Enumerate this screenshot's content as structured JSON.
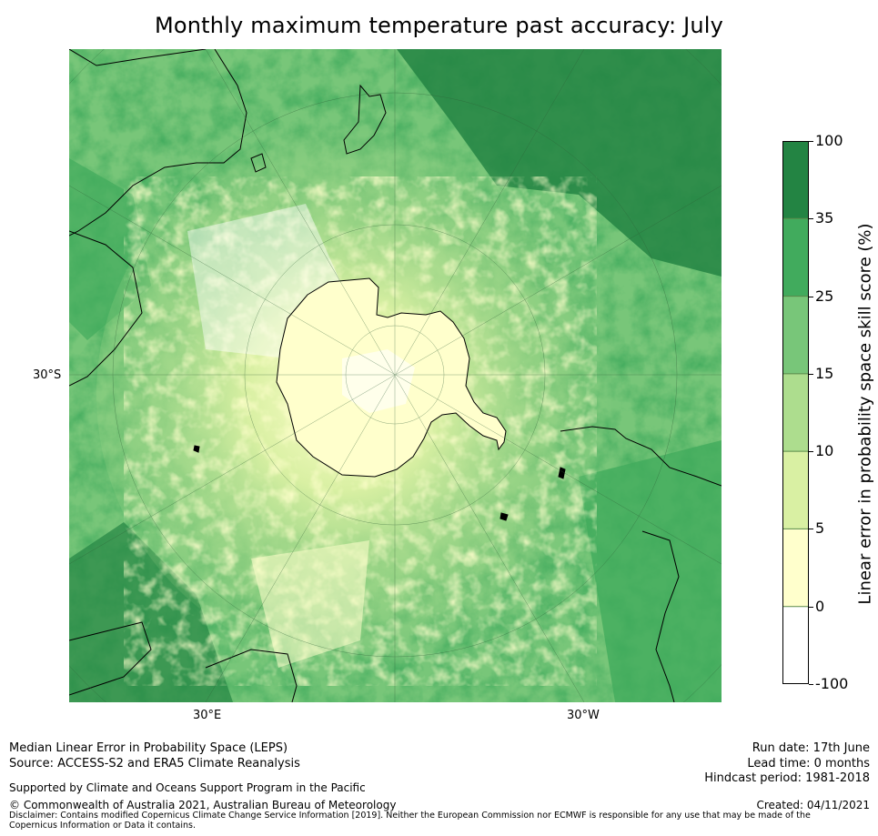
{
  "title": "Monthly maximum temperature past accuracy: July",
  "map": {
    "projection": "south-polar-stereographic",
    "lat_label": "30°S",
    "lon_labels": [
      "30°E",
      "30°W"
    ]
  },
  "colorbar": {
    "label": "Linear error in probability space skill score (%)",
    "ticks": [
      "100",
      "35",
      "25",
      "15",
      "10",
      "5",
      "0",
      "-100"
    ],
    "bins": [
      {
        "from": -100,
        "to": 0,
        "color": "#ffffff"
      },
      {
        "from": 0,
        "to": 5,
        "color": "#ffffcc"
      },
      {
        "from": 5,
        "to": 10,
        "color": "#d9f0a3"
      },
      {
        "from": 10,
        "to": 15,
        "color": "#addd8e"
      },
      {
        "from": 15,
        "to": 25,
        "color": "#78c679"
      },
      {
        "from": 25,
        "to": 35,
        "color": "#41ab5d"
      },
      {
        "from": 35,
        "to": 100,
        "color": "#238443"
      }
    ]
  },
  "footer": {
    "line1": "Median Linear Error in Probability Space (LEPS)",
    "line2": "Source: ACCESS-S2 and ERA5 Climate Reanalysis",
    "support": "Supported by Climate and Oceans Support Program in the Pacific",
    "copyright": "© Commonwealth of Australia 2021, Australian Bureau of Meteorology",
    "disclaimer": "Disclaimer: Contains modified Copernicus Climate Change Service Information [2019]. Neither the European Commission nor ECMWF is responsible for any use that may be made of the Copernicus Information or Data it contains.",
    "run_date": "Run date: 17th June",
    "lead_time": "Lead time: 0 months",
    "hindcast": "Hindcast period: 1981-2018",
    "created": "Created: 04/11/2021"
  }
}
